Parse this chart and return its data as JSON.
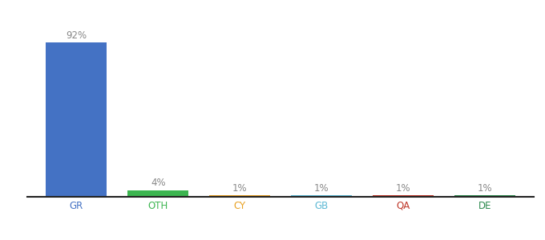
{
  "categories": [
    "GR",
    "OTH",
    "CY",
    "GB",
    "QA",
    "DE"
  ],
  "values": [
    92,
    4,
    1,
    1,
    1,
    1
  ],
  "bar_colors": [
    "#4472c4",
    "#3cb550",
    "#e8a020",
    "#5bb8d4",
    "#c0392b",
    "#2d8a4e"
  ],
  "tick_colors": [
    "#4472c4",
    "#3cb550",
    "#e8a020",
    "#5bb8d4",
    "#c0392b",
    "#2d8a4e"
  ],
  "labels": [
    "92%",
    "4%",
    "1%",
    "1%",
    "1%",
    "1%"
  ],
  "background_color": "#ffffff",
  "ylim": [
    0,
    100
  ],
  "label_fontsize": 8.5,
  "tick_fontsize": 8.5,
  "bar_width": 0.75,
  "figsize": [
    6.8,
    3.0
  ],
  "dpi": 100
}
